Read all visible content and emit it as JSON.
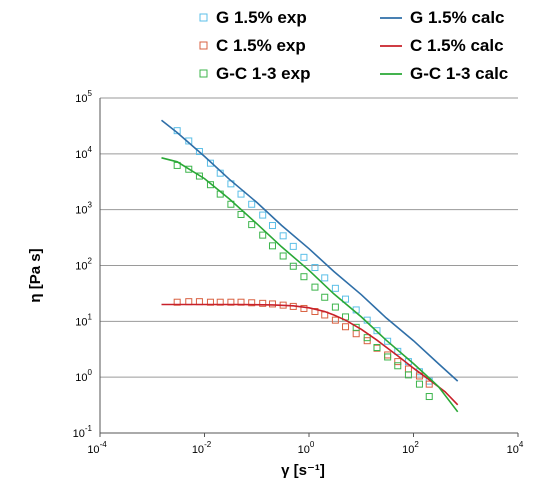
{
  "chart_data": {
    "type": "scatter",
    "title": "",
    "xlabel": "γ [s⁻¹]",
    "ylabel": "η [Pa s]",
    "xscale": "log",
    "yscale": "log",
    "xlim": [
      0.0001,
      10000
    ],
    "ylim": [
      0.1,
      100000
    ],
    "grid": "horizontal",
    "legend_position": "top",
    "x_ticks": [
      {
        "base": "10",
        "exp": "-4"
      },
      {
        "base": "10",
        "exp": "-2"
      },
      {
        "base": "10",
        "exp": "0"
      },
      {
        "base": "10",
        "exp": "2"
      },
      {
        "base": "10",
        "exp": "4"
      }
    ],
    "y_ticks": [
      {
        "base": "10",
        "exp": "-1"
      },
      {
        "base": "10",
        "exp": "0"
      },
      {
        "base": "10",
        "exp": "1"
      },
      {
        "base": "10",
        "exp": "2"
      },
      {
        "base": "10",
        "exp": "3"
      },
      {
        "base": "10",
        "exp": "4"
      },
      {
        "base": "10",
        "exp": "5"
      }
    ],
    "series": [
      {
        "name": "G 1.5% exp",
        "kind": "markers",
        "color": "#5bbfe8",
        "points": [
          [
            0.003,
            26000
          ],
          [
            0.005,
            17000
          ],
          [
            0.008,
            11000
          ],
          [
            0.013,
            6800
          ],
          [
            0.02,
            4500
          ],
          [
            0.032,
            2900
          ],
          [
            0.05,
            1900
          ],
          [
            0.08,
            1250
          ],
          [
            0.13,
            800
          ],
          [
            0.2,
            520
          ],
          [
            0.32,
            340
          ],
          [
            0.5,
            220
          ],
          [
            0.8,
            140
          ],
          [
            1.3,
            92
          ],
          [
            2,
            60
          ],
          [
            3.2,
            39
          ],
          [
            5,
            25
          ],
          [
            8,
            16
          ],
          [
            13,
            10.5
          ],
          [
            20,
            6.8
          ],
          [
            32,
            4.4
          ],
          [
            50,
            2.9
          ],
          [
            80,
            1.9
          ],
          [
            130,
            1.25
          ],
          [
            200,
            0.85
          ]
        ]
      },
      {
        "name": "C 1.5% exp",
        "kind": "markers",
        "color": "#d96040",
        "points": [
          [
            0.003,
            22
          ],
          [
            0.005,
            22.5
          ],
          [
            0.008,
            22.5
          ],
          [
            0.013,
            22
          ],
          [
            0.02,
            22
          ],
          [
            0.032,
            22
          ],
          [
            0.05,
            22
          ],
          [
            0.08,
            21.5
          ],
          [
            0.13,
            21
          ],
          [
            0.2,
            20.5
          ],
          [
            0.32,
            19.5
          ],
          [
            0.5,
            18.5
          ],
          [
            0.8,
            17
          ],
          [
            1.3,
            15
          ],
          [
            2,
            13
          ],
          [
            3.2,
            10.5
          ],
          [
            5,
            8
          ],
          [
            8,
            6
          ],
          [
            13,
            4.5
          ],
          [
            20,
            3.3
          ],
          [
            32,
            2.5
          ],
          [
            50,
            1.9
          ],
          [
            80,
            1.4
          ],
          [
            130,
            1.05
          ],
          [
            200,
            0.75
          ]
        ]
      },
      {
        "name": "G-C 1-3 exp",
        "kind": "markers",
        "color": "#3cb44b",
        "points": [
          [
            0.003,
            6200
          ],
          [
            0.005,
            5300
          ],
          [
            0.008,
            4000
          ],
          [
            0.013,
            2800
          ],
          [
            0.02,
            1900
          ],
          [
            0.032,
            1250
          ],
          [
            0.05,
            820
          ],
          [
            0.08,
            540
          ],
          [
            0.13,
            350
          ],
          [
            0.2,
            225
          ],
          [
            0.32,
            148
          ],
          [
            0.5,
            97
          ],
          [
            0.8,
            63
          ],
          [
            1.3,
            41
          ],
          [
            2,
            27
          ],
          [
            3.2,
            18
          ],
          [
            5,
            12
          ],
          [
            8,
            7.8
          ],
          [
            13,
            5.1
          ],
          [
            20,
            3.4
          ],
          [
            32,
            2.3
          ],
          [
            50,
            1.6
          ],
          [
            80,
            1.1
          ],
          [
            130,
            0.75
          ],
          [
            200,
            0.45
          ]
        ]
      },
      {
        "name": "G 1.5% calc",
        "kind": "line",
        "color": "#2f6fa8",
        "points": [
          [
            0.0015,
            40000
          ],
          [
            0.003,
            24000
          ],
          [
            0.01,
            9000
          ],
          [
            0.03,
            3500
          ],
          [
            0.1,
            1350
          ],
          [
            0.3,
            520
          ],
          [
            1,
            200
          ],
          [
            3,
            78
          ],
          [
            10,
            30
          ],
          [
            30,
            11.5
          ],
          [
            100,
            4.5
          ],
          [
            300,
            1.75
          ],
          [
            700,
            0.85
          ]
        ]
      },
      {
        "name": "C 1.5% calc",
        "kind": "line",
        "color": "#c8202a",
        "points": [
          [
            0.0015,
            20
          ],
          [
            0.01,
            20
          ],
          [
            0.05,
            20
          ],
          [
            0.2,
            19.7
          ],
          [
            0.5,
            19
          ],
          [
            1,
            17.5
          ],
          [
            2,
            15
          ],
          [
            3,
            13
          ],
          [
            5,
            10.5
          ],
          [
            10,
            7.2
          ],
          [
            20,
            4.6
          ],
          [
            50,
            2.4
          ],
          [
            100,
            1.45
          ],
          [
            200,
            0.9
          ],
          [
            400,
            0.55
          ],
          [
            700,
            0.32
          ]
        ]
      },
      {
        "name": "G-C 1-3 calc",
        "kind": "line",
        "color": "#2aa836",
        "points": [
          [
            0.0015,
            8500
          ],
          [
            0.003,
            7200
          ],
          [
            0.01,
            3600
          ],
          [
            0.03,
            1550
          ],
          [
            0.1,
            560
          ],
          [
            0.3,
            215
          ],
          [
            1,
            82
          ],
          [
            3,
            31
          ],
          [
            10,
            12
          ],
          [
            30,
            4.6
          ],
          [
            100,
            1.75
          ],
          [
            300,
            0.68
          ],
          [
            700,
            0.24
          ]
        ]
      }
    ]
  }
}
